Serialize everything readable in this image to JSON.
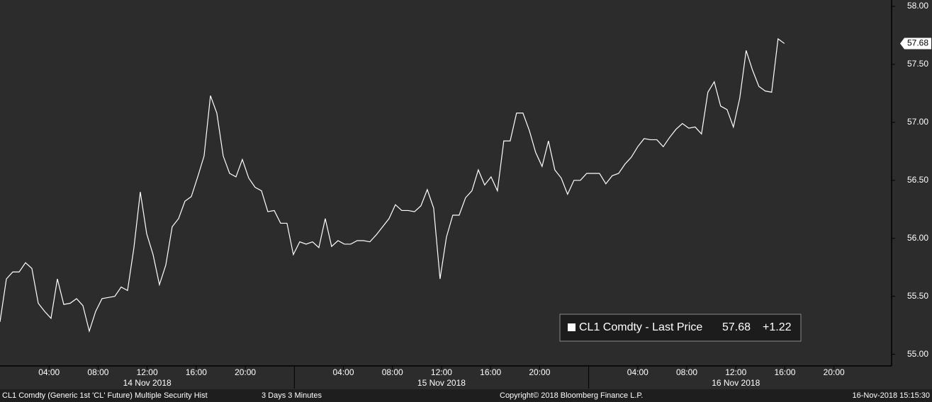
{
  "chart_data": {
    "type": "line",
    "series": [
      {
        "name": "CL1 Comdty - Last Price",
        "color": "#ffffff",
        "x": [
          0,
          0.52,
          1.04,
          1.56,
          2.08,
          2.6,
          3.12,
          3.64,
          4.16,
          4.68,
          5.2,
          5.72,
          6.24,
          6.76,
          7.28,
          7.8,
          8.32,
          8.84,
          9.36,
          9.88,
          10.4,
          10.92,
          11.44,
          11.96,
          12.48,
          13,
          13.52,
          14.04,
          14.56,
          15.08,
          15.6,
          16.12,
          16.64,
          17.16,
          17.68,
          18.2,
          18.72,
          19.24,
          19.76,
          20.28,
          20.8,
          21.32,
          21.84,
          22.36,
          22.88,
          23.4,
          23.92,
          24.44,
          24.96,
          25.48,
          26,
          26.52,
          27.04,
          27.56,
          28.08,
          28.6,
          29.12,
          29.64,
          30.16,
          30.68,
          31.2,
          31.72,
          32.24,
          32.76,
          33.28,
          33.8,
          34.32,
          34.84,
          35.36,
          35.88,
          36.4,
          36.92,
          37.44,
          37.96,
          38.48,
          39,
          39.52,
          40.04,
          40.56,
          41.08,
          41.6,
          42.12,
          42.64,
          43.16,
          43.68,
          44.2,
          44.72,
          45.24,
          45.76,
          46.28,
          46.8,
          47.32,
          47.84,
          48.36,
          48.88,
          49.4,
          49.92,
          50.44,
          50.96,
          51.48,
          52,
          52.52,
          53.04,
          53.56,
          54.08,
          54.6,
          55.12,
          55.64,
          56.16,
          56.68,
          57.2,
          57.72,
          58.24,
          58.76,
          59.28,
          59.8,
          60.32,
          60.84,
          61.36,
          61.88,
          62.4,
          62.92,
          63.44,
          63.96
        ],
        "values": [
          55.28,
          55.65,
          55.71,
          55.71,
          55.79,
          55.74,
          55.44,
          55.37,
          55.31,
          55.65,
          55.43,
          55.44,
          55.48,
          55.42,
          55.2,
          55.37,
          55.48,
          55.49,
          55.5,
          55.58,
          55.55,
          55.92,
          56.4,
          56.04,
          55.86,
          55.6,
          55.77,
          56.1,
          56.17,
          56.32,
          56.36,
          56.53,
          56.71,
          57.23,
          57.08,
          56.71,
          56.56,
          56.53,
          56.68,
          56.52,
          56.44,
          56.41,
          56.23,
          56.24,
          56.13,
          56.13,
          55.86,
          55.97,
          55.95,
          55.97,
          55.92,
          56.17,
          55.93,
          55.98,
          55.95,
          55.95,
          55.98,
          55.98,
          55.97,
          56.03,
          56.1,
          56.17,
          56.29,
          56.24,
          56.24,
          56.23,
          56.28,
          56.42,
          56.26,
          55.65,
          56.01,
          56.2,
          56.2,
          56.35,
          56.41,
          56.59,
          56.46,
          56.53,
          56.41,
          56.84,
          56.84,
          57.08,
          57.08,
          56.93,
          56.74,
          56.62,
          56.84,
          56.59,
          56.52,
          56.38,
          56.5,
          56.5,
          56.56,
          56.56,
          56.56,
          56.47,
          56.54,
          56.56,
          56.64,
          56.7,
          56.79,
          56.86,
          56.85,
          56.85,
          56.79,
          56.87,
          56.94,
          56.99,
          56.95,
          56.96,
          56.9,
          57.26,
          57.35,
          57.14,
          57.11,
          56.96,
          57.21,
          57.62,
          57.45,
          57.31,
          57.27,
          57.26,
          57.72,
          57.68
        ]
      }
    ],
    "last_price": 57.68,
    "change": {
      "value": 1.22,
      "label": "+1.22"
    },
    "xlim": [
      0,
      72.7
    ],
    "xticks": [
      {
        "value": 4,
        "label": "04:00"
      },
      {
        "value": 8,
        "label": "08:00"
      },
      {
        "value": 12,
        "label": "12:00"
      },
      {
        "value": 16,
        "label": "16:00"
      },
      {
        "value": 20,
        "label": "20:00"
      },
      {
        "value": 28,
        "label": "04:00"
      },
      {
        "value": 32,
        "label": "08:00"
      },
      {
        "value": 36,
        "label": "12:00"
      },
      {
        "value": 40,
        "label": "16:00"
      },
      {
        "value": 44,
        "label": "20:00"
      },
      {
        "value": 52,
        "label": "04:00"
      },
      {
        "value": 56,
        "label": "08:00"
      },
      {
        "value": 60,
        "label": "12:00"
      },
      {
        "value": 64,
        "label": "16:00"
      },
      {
        "value": 68,
        "label": "20:00"
      }
    ],
    "day_labels": [
      {
        "value": 12,
        "label": "14 Nov 2018"
      },
      {
        "value": 36,
        "label": "15 Nov 2018"
      },
      {
        "value": 60,
        "label": "16 Nov 2018"
      }
    ],
    "day_breaks": [
      24,
      48
    ],
    "ylim": [
      54.9,
      58.055
    ],
    "yticks": [
      {
        "value": 55,
        "label": "55.00"
      },
      {
        "value": 55.5,
        "label": "55.50"
      },
      {
        "value": 56,
        "label": "56.00"
      },
      {
        "value": 56.5,
        "label": "56.50"
      },
      {
        "value": 57,
        "label": "57.00"
      },
      {
        "value": 57.5,
        "label": "57.50"
      },
      {
        "value": 58,
        "label": "58.00"
      }
    ],
    "footer": {
      "security": "CL1 Comdty (Generic 1st 'CL' Future) Multiple Security Hist",
      "period": "3 Days 3 Minutes",
      "copyright": "Copyright© 2018 Bloomberg Finance L.P.",
      "timestamp": "16-Nov-2018 15:15:30"
    }
  }
}
